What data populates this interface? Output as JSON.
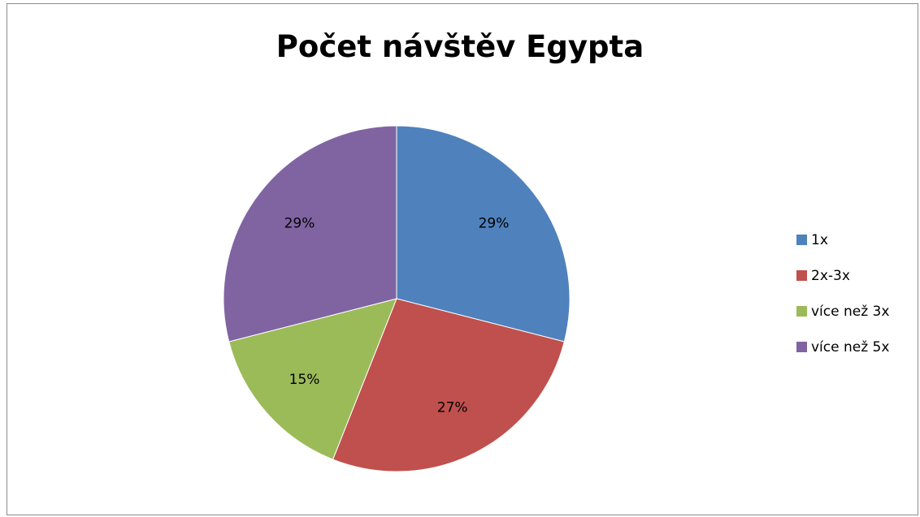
{
  "chart_data": {
    "type": "pie",
    "title": "Počet návštěv Egypta",
    "categories": [
      "1x",
      "2x-3x",
      "více než 3x",
      "více než 5x"
    ],
    "values": [
      29,
      27,
      15,
      29
    ],
    "labels": [
      "29%",
      "27%",
      "15%",
      "29%"
    ],
    "colors": [
      "#4f81bd",
      "#c0504d",
      "#9bbb59",
      "#8064a2"
    ],
    "start_angle": "12 o'clock",
    "direction": "clockwise",
    "legend_position": "right"
  }
}
